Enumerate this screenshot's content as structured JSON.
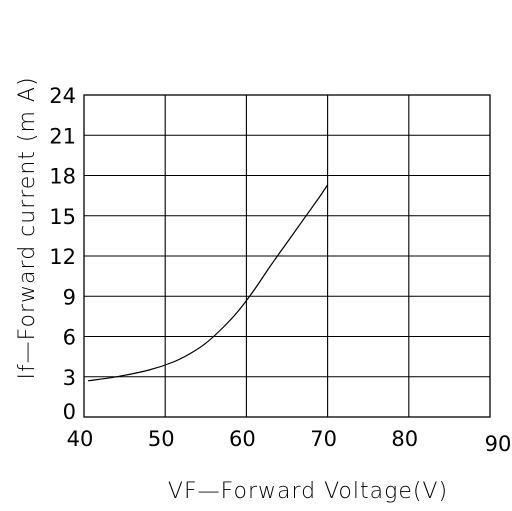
{
  "chart_data": {
    "type": "line",
    "xlabel": "VF—Forward Voltage(V)",
    "ylabel": "If—Forward current (m A)",
    "xlim": [
      40,
      90
    ],
    "ylim": [
      0,
      24
    ],
    "x_ticks": [
      40,
      50,
      60,
      70,
      80,
      90
    ],
    "y_ticks": [
      0,
      3,
      6,
      9,
      12,
      15,
      18,
      21,
      24
    ],
    "grid": true,
    "series": [
      {
        "x": [
          40.5,
          44,
          48,
          51,
          53,
          55,
          57,
          59,
          61,
          63,
          65,
          67,
          69,
          70
        ],
        "y": [
          2.7,
          3.0,
          3.5,
          4.1,
          4.7,
          5.5,
          6.6,
          7.9,
          9.5,
          11.3,
          13.0,
          14.7,
          16.4,
          17.3
        ]
      }
    ]
  }
}
